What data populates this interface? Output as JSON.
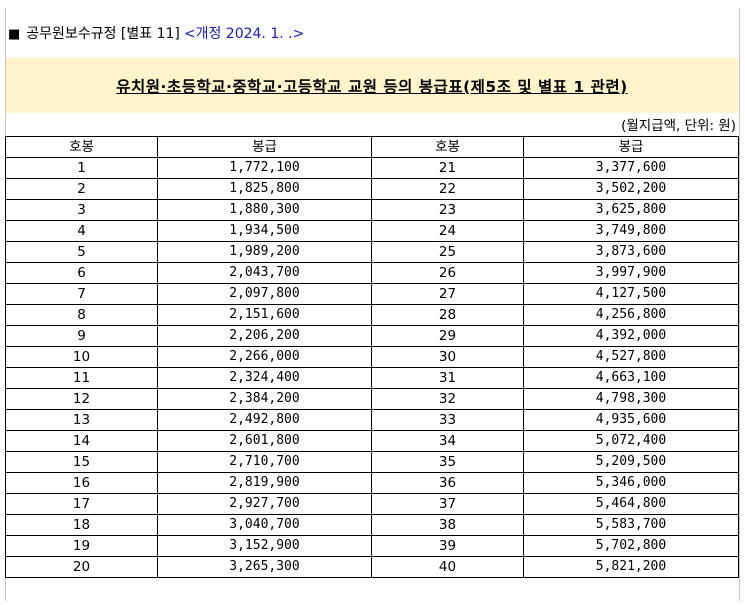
{
  "header": {
    "square": "■",
    "regulation": "공무원보수규정 [별표 11]",
    "amendment": "<개정 2024. 1. .>"
  },
  "banner": {
    "title": "유치원·초등학교·중학교·고등학교 교원 등의 봉급표(제5조 및 별표 1 관련)"
  },
  "unit_note": "(월지급액, 단위: 원)",
  "table": {
    "headers": [
      "호봉",
      "봉급",
      "호봉",
      "봉급"
    ],
    "rows": [
      {
        "step_a": "1",
        "pay_a": "1,772,100",
        "step_b": "21",
        "pay_b": "3,377,600"
      },
      {
        "step_a": "2",
        "pay_a": "1,825,800",
        "step_b": "22",
        "pay_b": "3,502,200"
      },
      {
        "step_a": "3",
        "pay_a": "1,880,300",
        "step_b": "23",
        "pay_b": "3,625,800"
      },
      {
        "step_a": "4",
        "pay_a": "1,934,500",
        "step_b": "24",
        "pay_b": "3,749,800"
      },
      {
        "step_a": "5",
        "pay_a": "1,989,200",
        "step_b": "25",
        "pay_b": "3,873,600"
      },
      {
        "step_a": "6",
        "pay_a": "2,043,700",
        "step_b": "26",
        "pay_b": "3,997,900"
      },
      {
        "step_a": "7",
        "pay_a": "2,097,800",
        "step_b": "27",
        "pay_b": "4,127,500"
      },
      {
        "step_a": "8",
        "pay_a": "2,151,600",
        "step_b": "28",
        "pay_b": "4,256,800"
      },
      {
        "step_a": "9",
        "pay_a": "2,206,200",
        "step_b": "29",
        "pay_b": "4,392,000"
      },
      {
        "step_a": "10",
        "pay_a": "2,266,000",
        "step_b": "30",
        "pay_b": "4,527,800"
      },
      {
        "step_a": "11",
        "pay_a": "2,324,400",
        "step_b": "31",
        "pay_b": "4,663,100"
      },
      {
        "step_a": "12",
        "pay_a": "2,384,200",
        "step_b": "32",
        "pay_b": "4,798,300"
      },
      {
        "step_a": "13",
        "pay_a": "2,492,800",
        "step_b": "33",
        "pay_b": "4,935,600"
      },
      {
        "step_a": "14",
        "pay_a": "2,601,800",
        "step_b": "34",
        "pay_b": "5,072,400"
      },
      {
        "step_a": "15",
        "pay_a": "2,710,700",
        "step_b": "35",
        "pay_b": "5,209,500"
      },
      {
        "step_a": "16",
        "pay_a": "2,819,900",
        "step_b": "36",
        "pay_b": "5,346,000"
      },
      {
        "step_a": "17",
        "pay_a": "2,927,700",
        "step_b": "37",
        "pay_b": "5,464,800"
      },
      {
        "step_a": "18",
        "pay_a": "3,040,700",
        "step_b": "38",
        "pay_b": "5,583,700"
      },
      {
        "step_a": "19",
        "pay_a": "3,152,900",
        "step_b": "39",
        "pay_b": "5,702,800"
      },
      {
        "step_a": "20",
        "pay_a": "3,265,300",
        "step_b": "40",
        "pay_b": "5,821,200"
      }
    ]
  }
}
